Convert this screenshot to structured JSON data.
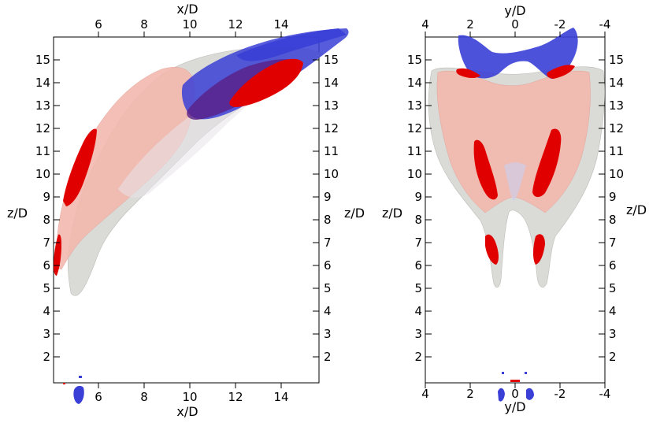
{
  "left_panel": {
    "top_axis_label": "x/D",
    "bottom_axis_label": "x/D",
    "left_axis_label": "z/D",
    "right_axis_label": "z/D",
    "x_ticks": [
      "6",
      "8",
      "10",
      "12",
      "14"
    ],
    "z_ticks_left": [
      "15",
      "14",
      "13",
      "12",
      "11",
      "10",
      "9",
      "8",
      "7",
      "6",
      "5",
      "4",
      "3",
      "2"
    ],
    "z_ticks_right": [
      "15",
      "14",
      "13",
      "12",
      "11",
      "10",
      "9",
      "8",
      "7",
      "6",
      "5",
      "4",
      "3",
      "2"
    ]
  },
  "right_panel": {
    "top_axis_label": "y/D",
    "bottom_axis_label": "y/D",
    "left_axis_label": "z/D",
    "right_axis_label": "z/D",
    "y_ticks": [
      "4",
      "2",
      "0",
      "-2",
      "-4"
    ],
    "z_ticks_left": [
      "15",
      "14",
      "13",
      "12",
      "11",
      "10",
      "9",
      "8",
      "7",
      "6",
      "5",
      "4",
      "3",
      "2"
    ],
    "z_ticks_right": [
      "15",
      "14",
      "13",
      "12",
      "11",
      "10",
      "9",
      "8",
      "7",
      "6",
      "5",
      "4",
      "3",
      "2"
    ]
  },
  "colors": {
    "red_isosurface": "#e00000",
    "blue_isosurface": "#3a3fd6",
    "pink_isosurface": "#f0b0a8",
    "grey_isosurface": "#d8d8d4"
  }
}
